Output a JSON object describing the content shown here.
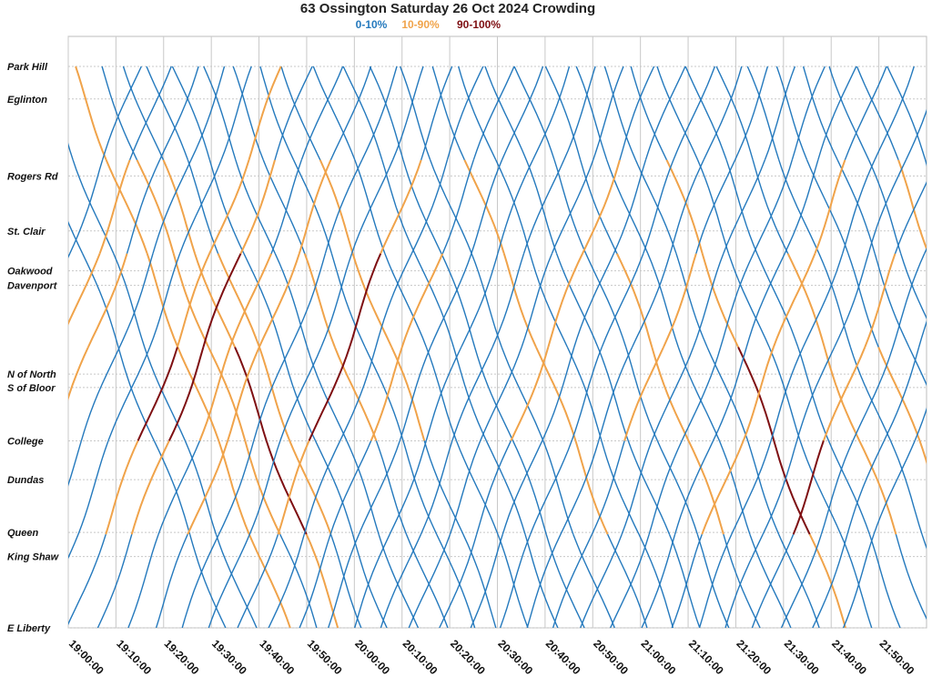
{
  "chart_data": {
    "type": "line",
    "title": "63 Ossington Saturday 26 Oct 2024 Crowding",
    "legend": [
      {
        "label": "0-10%",
        "color": "#2479bd"
      },
      {
        "label": "10-90%",
        "color": "#f0a34a"
      },
      {
        "label": "90-100%",
        "color": "#7e0f12"
      }
    ],
    "legend_placement": "top-center",
    "grid": true,
    "stops": [
      {
        "name": "Park Hill",
        "pos": 0
      },
      {
        "name": "Eglinton",
        "pos": 5.8
      },
      {
        "name": "Rogers Rd",
        "pos": 19.5
      },
      {
        "name": "St. Clair",
        "pos": 29.3
      },
      {
        "name": "Oakwood",
        "pos": 36.4
      },
      {
        "name": "Davenport",
        "pos": 39.0
      },
      {
        "name": "N of North",
        "pos": 54.8
      },
      {
        "name": "S of Bloor",
        "pos": 57.2
      },
      {
        "name": "College",
        "pos": 66.7
      },
      {
        "name": "Dundas",
        "pos": 73.6
      },
      {
        "name": "Queen",
        "pos": 83.0
      },
      {
        "name": "King Shaw",
        "pos": 87.3
      },
      {
        "name": "E Liberty",
        "pos": 100
      }
    ],
    "x_ticks": [
      "19:00:00",
      "19:10:00",
      "19:20:00",
      "19:30:00",
      "19:40:00",
      "19:50:00",
      "20:00:00",
      "20:10:00",
      "20:20:00",
      "20:30:00",
      "20:40:00",
      "20:50:00",
      "21:00:00",
      "21:10:00",
      "21:20:00",
      "21:30:00",
      "21:40:00",
      "21:50:00"
    ],
    "xlim_minutes": [
      0,
      180
    ],
    "trips": [
      {
        "dir": "sb",
        "start": -12,
        "load": [
          0,
          0,
          0,
          0,
          0,
          0
        ]
      },
      {
        "dir": "sb",
        "start": -6,
        "load": [
          0,
          0,
          0,
          0,
          0,
          0
        ]
      },
      {
        "dir": "sb",
        "start": 1,
        "load": [
          1,
          1,
          1,
          1,
          1,
          1
        ]
      },
      {
        "dir": "sb",
        "start": 7,
        "load": [
          0,
          1,
          1,
          1,
          1,
          0
        ]
      },
      {
        "dir": "sb",
        "start": 12,
        "load": [
          0,
          1,
          1,
          2,
          2,
          1
        ]
      },
      {
        "dir": "sb",
        "start": 17,
        "load": [
          0,
          0,
          1,
          1,
          1,
          0
        ]
      },
      {
        "dir": "sb",
        "start": 22,
        "load": [
          0,
          0,
          0,
          0,
          0,
          0
        ]
      },
      {
        "dir": "sb",
        "start": 28,
        "load": [
          0,
          0,
          0,
          0,
          0,
          0
        ]
      },
      {
        "dir": "sb",
        "start": 34,
        "load": [
          0,
          0,
          1,
          1,
          0,
          0
        ]
      },
      {
        "dir": "sb",
        "start": 40,
        "load": [
          0,
          0,
          0,
          0,
          0,
          0
        ]
      },
      {
        "dir": "sb",
        "start": 45,
        "load": [
          0,
          1,
          1,
          1,
          0,
          0
        ]
      },
      {
        "dir": "sb",
        "start": 52,
        "load": [
          0,
          0,
          0,
          0,
          0,
          0
        ]
      },
      {
        "dir": "sb",
        "start": 58,
        "load": [
          0,
          0,
          0,
          0,
          0,
          0
        ]
      },
      {
        "dir": "sb",
        "start": 63,
        "load": [
          0,
          0,
          0,
          0,
          0,
          0
        ]
      },
      {
        "dir": "sb",
        "start": 69,
        "load": [
          0,
          0,
          0,
          0,
          0,
          0
        ]
      },
      {
        "dir": "sb",
        "start": 76,
        "load": [
          0,
          1,
          1,
          1,
          1,
          0
        ]
      },
      {
        "dir": "sb",
        "start": 82,
        "load": [
          0,
          0,
          0,
          0,
          0,
          0
        ]
      },
      {
        "dir": "sb",
        "start": 88,
        "load": [
          0,
          0,
          0,
          0,
          0,
          0
        ]
      },
      {
        "dir": "sb",
        "start": 94,
        "load": [
          0,
          0,
          0,
          0,
          0,
          0
        ]
      },
      {
        "dir": "sb",
        "start": 100,
        "load": [
          0,
          0,
          1,
          1,
          1,
          0
        ]
      },
      {
        "dir": "sb",
        "start": 106,
        "load": [
          0,
          0,
          0,
          0,
          0,
          0
        ]
      },
      {
        "dir": "sb",
        "start": 112,
        "load": [
          0,
          0,
          0,
          0,
          0,
          0
        ]
      },
      {
        "dir": "sb",
        "start": 118,
        "load": [
          0,
          1,
          1,
          2,
          2,
          1
        ]
      },
      {
        "dir": "sb",
        "start": 124,
        "load": [
          0,
          0,
          0,
          0,
          0,
          0
        ]
      },
      {
        "dir": "sb",
        "start": 130,
        "load": [
          0,
          0,
          0,
          0,
          0,
          0
        ]
      },
      {
        "dir": "sb",
        "start": 136,
        "load": [
          0,
          0,
          1,
          1,
          1,
          0
        ]
      },
      {
        "dir": "sb",
        "start": 142,
        "load": [
          0,
          0,
          0,
          0,
          0,
          0
        ]
      },
      {
        "dir": "sb",
        "start": 148,
        "load": [
          0,
          0,
          0,
          1,
          1,
          1
        ]
      },
      {
        "dir": "sb",
        "start": 154,
        "load": [
          0,
          0,
          0,
          0,
          0,
          0
        ]
      },
      {
        "dir": "sb",
        "start": 160,
        "load": [
          0,
          0,
          0,
          0,
          0,
          0
        ]
      },
      {
        "dir": "sb",
        "start": 166,
        "load": [
          0,
          1,
          1,
          0,
          0,
          0
        ]
      },
      {
        "dir": "sb",
        "start": 172,
        "load": [
          0,
          0,
          0,
          0,
          0,
          0
        ]
      },
      {
        "dir": "nb",
        "start": -30,
        "load": [
          0,
          0,
          0,
          0,
          0,
          0
        ]
      },
      {
        "dir": "nb",
        "start": -24,
        "load": [
          0,
          0,
          1,
          1,
          1,
          0
        ]
      },
      {
        "dir": "nb",
        "start": -18,
        "load": [
          0,
          1,
          1,
          1,
          0,
          0
        ]
      },
      {
        "dir": "nb",
        "start": -12,
        "load": [
          0,
          0,
          0,
          0,
          0,
          0
        ]
      },
      {
        "dir": "nb",
        "start": -6,
        "load": [
          0,
          0,
          0,
          0,
          0,
          0
        ]
      },
      {
        "dir": "nb",
        "start": 0,
        "load": [
          0,
          1,
          2,
          1,
          1,
          1
        ]
      },
      {
        "dir": "nb",
        "start": 6,
        "load": [
          0,
          1,
          2,
          2,
          1,
          0
        ]
      },
      {
        "dir": "nb",
        "start": 12,
        "load": [
          0,
          0,
          1,
          1,
          0,
          0
        ]
      },
      {
        "dir": "nb",
        "start": 18,
        "load": [
          0,
          1,
          1,
          1,
          1,
          0
        ]
      },
      {
        "dir": "nb",
        "start": 24,
        "load": [
          0,
          0,
          0,
          0,
          0,
          0
        ]
      },
      {
        "dir": "nb",
        "start": 30,
        "load": [
          0,
          0,
          0,
          0,
          0,
          0
        ]
      },
      {
        "dir": "nb",
        "start": 36,
        "load": [
          0,
          1,
          2,
          2,
          1,
          0
        ]
      },
      {
        "dir": "nb",
        "start": 42,
        "load": [
          0,
          0,
          0,
          0,
          0,
          0
        ]
      },
      {
        "dir": "nb",
        "start": 48,
        "load": [
          0,
          0,
          1,
          1,
          0,
          0
        ]
      },
      {
        "dir": "nb",
        "start": 54,
        "load": [
          0,
          0,
          0,
          0,
          0,
          0
        ]
      },
      {
        "dir": "nb",
        "start": 60,
        "load": [
          0,
          0,
          0,
          0,
          0,
          0
        ]
      },
      {
        "dir": "nb",
        "start": 66,
        "load": [
          0,
          0,
          0,
          0,
          0,
          0
        ]
      },
      {
        "dir": "nb",
        "start": 72,
        "load": [
          0,
          0,
          0,
          0,
          0,
          0
        ]
      },
      {
        "dir": "nb",
        "start": 78,
        "load": [
          0,
          0,
          1,
          1,
          1,
          0
        ]
      },
      {
        "dir": "nb",
        "start": 84,
        "load": [
          0,
          0,
          0,
          0,
          0,
          0
        ]
      },
      {
        "dir": "nb",
        "start": 90,
        "load": [
          0,
          0,
          0,
          0,
          0,
          0
        ]
      },
      {
        "dir": "nb",
        "start": 96,
        "load": [
          0,
          0,
          0,
          0,
          0,
          0
        ]
      },
      {
        "dir": "nb",
        "start": 102,
        "load": [
          0,
          0,
          1,
          1,
          0,
          0
        ]
      },
      {
        "dir": "nb",
        "start": 108,
        "load": [
          0,
          0,
          0,
          0,
          0,
          0
        ]
      },
      {
        "dir": "nb",
        "start": 114,
        "load": [
          0,
          0,
          0,
          0,
          0,
          0
        ]
      },
      {
        "dir": "nb",
        "start": 120,
        "load": [
          0,
          0,
          0,
          0,
          0,
          0
        ]
      },
      {
        "dir": "nb",
        "start": 126,
        "load": [
          0,
          1,
          1,
          1,
          1,
          0
        ]
      },
      {
        "dir": "nb",
        "start": 132,
        "load": [
          0,
          0,
          0,
          0,
          0,
          0
        ]
      },
      {
        "dir": "nb",
        "start": 138,
        "load": [
          0,
          0,
          0,
          0,
          0,
          0
        ]
      },
      {
        "dir": "nb",
        "start": 144,
        "load": [
          0,
          2,
          1,
          1,
          0,
          0
        ]
      },
      {
        "dir": "nb",
        "start": 150,
        "load": [
          0,
          0,
          0,
          0,
          0,
          0
        ]
      },
      {
        "dir": "nb",
        "start": 156,
        "load": [
          0,
          0,
          0,
          0,
          0,
          0
        ]
      },
      {
        "dir": "nb",
        "start": 162,
        "load": [
          0,
          0,
          0,
          0,
          0,
          0
        ]
      }
    ]
  }
}
